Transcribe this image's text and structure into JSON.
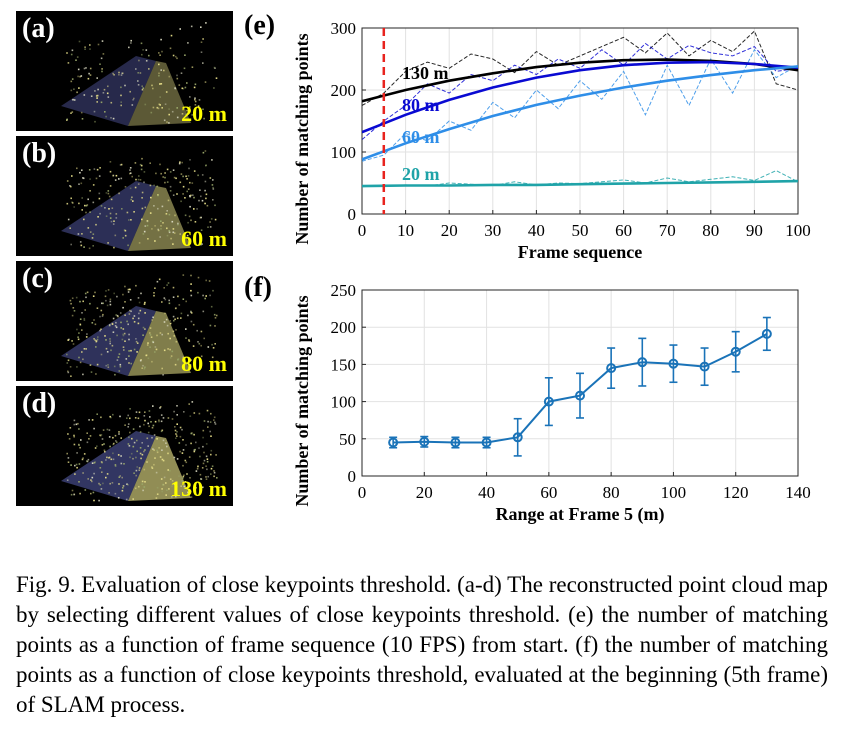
{
  "panels": [
    {
      "label": "(a)",
      "range": "20 m",
      "intensity": 0.35
    },
    {
      "label": "(b)",
      "range": "60 m",
      "intensity": 0.65
    },
    {
      "label": "(c)",
      "range": "80 m",
      "intensity": 0.8
    },
    {
      "label": "(d)",
      "range": "130 m",
      "intensity": 1.0
    }
  ],
  "chart_data": [
    {
      "panel_label": "(e)",
      "type": "line",
      "xlabel": "Frame sequence",
      "ylabel": "Number of matching points",
      "xlim": [
        0,
        100
      ],
      "ylim": [
        0,
        300
      ],
      "xticks": [
        0,
        10,
        20,
        30,
        40,
        50,
        60,
        70,
        80,
        90,
        100
      ],
      "yticks": [
        0,
        100,
        200,
        300
      ],
      "vline_x": 5,
      "vline_color": "#e8231e",
      "grid": true,
      "series": [
        {
          "name": "130 m",
          "color": "#000000",
          "fit_x": [
            0,
            10,
            20,
            30,
            40,
            50,
            60,
            70,
            80,
            90,
            100
          ],
          "fit_y": [
            182,
            200,
            215,
            227,
            237,
            244,
            248,
            249,
            247,
            242,
            232
          ],
          "raw_x": [
            0,
            5,
            10,
            15,
            20,
            25,
            30,
            35,
            40,
            45,
            50,
            55,
            60,
            65,
            70,
            75,
            80,
            85,
            90,
            95,
            100
          ],
          "raw_y": [
            175,
            195,
            230,
            245,
            235,
            258,
            250,
            228,
            262,
            240,
            255,
            270,
            285,
            260,
            292,
            255,
            280,
            262,
            295,
            210,
            200
          ]
        },
        {
          "name": "80 m",
          "color": "#0a0ad2",
          "fit_x": [
            0,
            10,
            20,
            30,
            40,
            50,
            60,
            70,
            80,
            90,
            100
          ],
          "fit_y": [
            132,
            160,
            184,
            204,
            220,
            232,
            240,
            244,
            245,
            242,
            236
          ],
          "raw_x": [
            0,
            5,
            10,
            15,
            20,
            25,
            30,
            35,
            40,
            45,
            50,
            55,
            60,
            65,
            70,
            75,
            80,
            85,
            90,
            95,
            100
          ],
          "raw_y": [
            120,
            150,
            175,
            210,
            195,
            225,
            215,
            240,
            225,
            250,
            235,
            265,
            240,
            275,
            250,
            272,
            260,
            255,
            270,
            230,
            235
          ]
        },
        {
          "name": "60 m",
          "color": "#2f8ee8",
          "fit_x": [
            0,
            10,
            20,
            30,
            40,
            50,
            60,
            70,
            80,
            90,
            100
          ],
          "fit_y": [
            88,
            114,
            137,
            158,
            176,
            191,
            204,
            215,
            224,
            232,
            238
          ],
          "raw_x": [
            0,
            5,
            10,
            15,
            20,
            25,
            30,
            35,
            40,
            45,
            50,
            55,
            60,
            65,
            70,
            75,
            80,
            85,
            90,
            95,
            100
          ],
          "raw_y": [
            85,
            95,
            130,
            118,
            150,
            135,
            180,
            155,
            200,
            170,
            215,
            185,
            230,
            160,
            240,
            175,
            250,
            195,
            265,
            220,
            240
          ]
        },
        {
          "name": "20 m",
          "color": "#1fa3a8",
          "fit_x": [
            0,
            10,
            20,
            30,
            40,
            50,
            60,
            70,
            80,
            90,
            100
          ],
          "fit_y": [
            45,
            46,
            46,
            47,
            47,
            48,
            49,
            50,
            51,
            52,
            53
          ],
          "raw_x": [
            0,
            5,
            10,
            15,
            20,
            25,
            30,
            35,
            40,
            45,
            50,
            55,
            60,
            65,
            70,
            75,
            80,
            85,
            90,
            95,
            100
          ],
          "raw_y": [
            44,
            46,
            47,
            45,
            50,
            48,
            46,
            52,
            47,
            50,
            49,
            52,
            55,
            50,
            58,
            52,
            56,
            60,
            54,
            70,
            52
          ]
        }
      ]
    },
    {
      "panel_label": "(f)",
      "type": "line",
      "xlabel": "Range at Frame 5 (m)",
      "ylabel": "Number of matching points",
      "xlim": [
        0,
        140
      ],
      "ylim": [
        0,
        250
      ],
      "xticks": [
        0,
        20,
        40,
        60,
        80,
        100,
        120,
        140
      ],
      "yticks": [
        0,
        50,
        100,
        150,
        200,
        250
      ],
      "grid": true,
      "series": [
        {
          "color": "#1a73b8",
          "x": [
            10,
            20,
            30,
            40,
            50,
            60,
            70,
            80,
            90,
            100,
            110,
            120,
            130
          ],
          "y": [
            45,
            46,
            45,
            45,
            52,
            100,
            108,
            145,
            153,
            151,
            147,
            167,
            191
          ],
          "err": [
            7,
            7,
            7,
            7,
            25,
            32,
            30,
            27,
            32,
            25,
            25,
            27,
            22
          ]
        }
      ]
    }
  ],
  "caption": "Fig. 9.    Evaluation of close keypoints threshold. (a-d) The reconstructed point cloud map by selecting different values of close keypoints threshold. (e) the number of matching points as a function of frame sequence (10 FPS) from start. (f) the number of matching points as a function of close keypoints threshold, evaluated at the beginning (5th frame) of SLAM process."
}
